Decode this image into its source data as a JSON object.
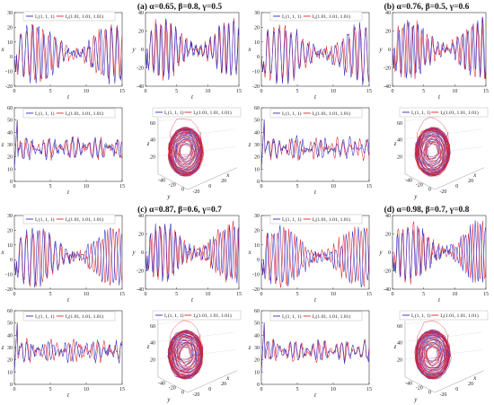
{
  "figure": {
    "colors": {
      "series1": "#2b2bc8",
      "series2": "#e0242c",
      "axis": "#333333",
      "grid": "#dddddd"
    },
    "legend": [
      "I₁(1, 1, 1)",
      "I₂(1.01, 1.01, 1.01)"
    ],
    "groups": [
      {
        "title": "(a) α=0.65, β=0.8, γ=0.5"
      },
      {
        "title": "(b) α=0.76, β=0.5, γ=0.6"
      },
      {
        "title": "(c) α=0.87, β=0.6, γ=0.7"
      },
      {
        "title": "(d) α=0.98, β=0.7, γ=0.8"
      }
    ]
  },
  "chart_data": [
    {
      "type": "line",
      "panel": "x(t)",
      "xlabel": "t",
      "ylabel": "x",
      "xlim": [
        0,
        15
      ],
      "ylim": [
        -20,
        30
      ],
      "xticks": [
        "0",
        "5",
        "10",
        "15"
      ],
      "yticks": [
        "30",
        "20",
        "10",
        "0",
        "-10",
        "-20"
      ],
      "series": [
        {
          "name": "I₁(1, 1, 1)"
        },
        {
          "name": "I₂(1.01, 1.01, 1.01)"
        }
      ]
    },
    {
      "type": "line",
      "panel": "y(t)",
      "xlabel": "t",
      "ylabel": "y",
      "xlim": [
        0,
        15
      ],
      "ylim": [
        -40,
        40
      ],
      "xticks": [
        "0",
        "5",
        "10",
        "15"
      ],
      "yticks": [
        "40",
        "20",
        "0",
        "-20",
        "-40"
      ],
      "series": [
        {
          "name": "I₁(1, 1, 1)"
        },
        {
          "name": "I₂(1.01, 1.01, 1.01)"
        }
      ]
    },
    {
      "type": "line",
      "panel": "z(t)",
      "xlabel": "t",
      "ylabel": "z",
      "xlim": [
        0,
        15
      ],
      "ylim": [
        0,
        60
      ],
      "xticks": [
        "0",
        "5",
        "10",
        "15"
      ],
      "yticks": [
        "60",
        "50",
        "40",
        "30",
        "20",
        "10",
        "0"
      ],
      "series": [
        {
          "name": "I₁(1, 1, 1)"
        },
        {
          "name": "I₂(1.01, 1.01, 1.01)"
        }
      ]
    },
    {
      "type": "line",
      "panel": "3d attractor",
      "xlabel": "x",
      "ylabel": "y",
      "zlabel": "z",
      "zticks": [
        "60",
        "40",
        "20"
      ],
      "yticks": [
        "-40",
        "-20",
        "0"
      ],
      "xticks": [
        "-20",
        "0",
        "20"
      ],
      "series": [
        {
          "name": "I₁(1, 1, 1)"
        },
        {
          "name": "I₂(1.01, 1.01, 1.01)"
        }
      ]
    }
  ]
}
